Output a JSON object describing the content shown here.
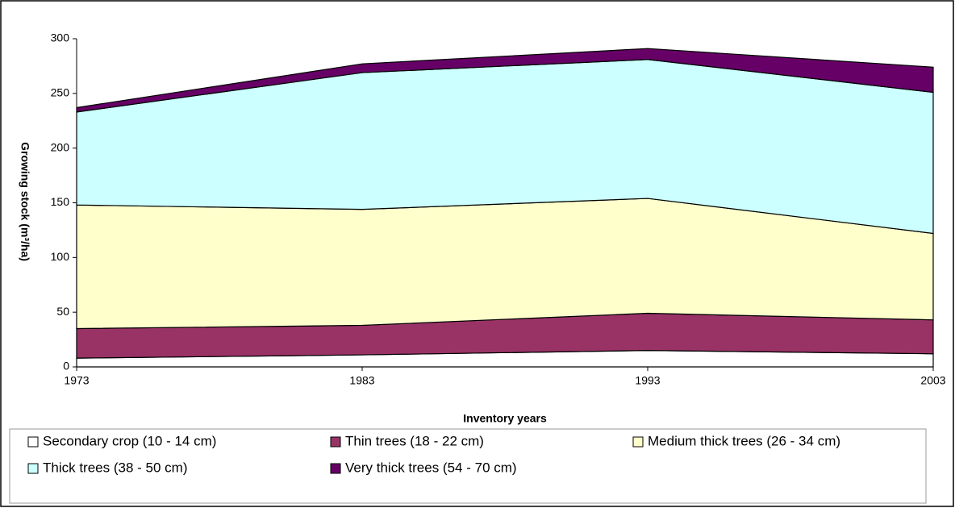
{
  "chart_data": {
    "type": "area",
    "x_label": "Inventory years",
    "y_label": "Growing stock (m³/ha)",
    "x": [
      1973,
      1983,
      1993,
      2003
    ],
    "xlim": [
      1973,
      2003
    ],
    "xticks": [
      1973,
      1983,
      1993,
      2003
    ],
    "ylim": [
      0,
      300
    ],
    "yticks": [
      0,
      50,
      100,
      150,
      200,
      250,
      300
    ],
    "stacked": true,
    "series": [
      {
        "name": "Secondary crop (10 - 14 cm)",
        "color": "#ffffff",
        "values": [
          8,
          11,
          15,
          12
        ]
      },
      {
        "name": "Thin trees (18 - 22 cm)",
        "color": "#993366",
        "values": [
          27,
          27,
          34,
          31
        ]
      },
      {
        "name": "Medium thick trees  (26 - 34 cm)",
        "color": "#ffffcc",
        "values": [
          113,
          106,
          105,
          79
        ]
      },
      {
        "name": "Thick trees (38 - 50 cm)",
        "color": "#ccffff",
        "values": [
          85,
          125,
          127,
          129
        ]
      },
      {
        "name": "Very thick trees (54 - 70 cm)",
        "color": "#660066",
        "values": [
          4,
          8,
          10,
          23
        ]
      }
    ]
  }
}
